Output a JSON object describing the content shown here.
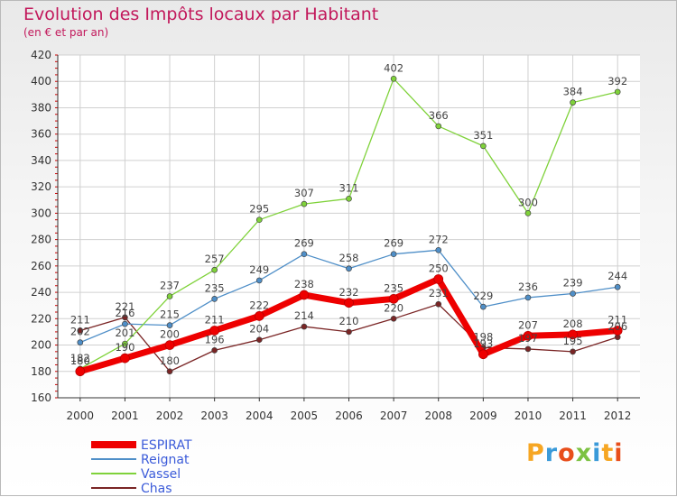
{
  "title": "Evolution des Impôts locaux par Habitant",
  "subtitle": "(en € et par an)",
  "logo": {
    "text": "Proxiti",
    "colors": [
      "#f6a623",
      "#3a9ad9",
      "#e84e1b",
      "#7cc242",
      "#3a9ad9",
      "#f6a623",
      "#e84e1b"
    ]
  },
  "chart_data": {
    "type": "line",
    "x": [
      2000,
      2001,
      2002,
      2003,
      2004,
      2005,
      2006,
      2007,
      2008,
      2009,
      2010,
      2011,
      2012
    ],
    "ylim": [
      160,
      420
    ],
    "yticks": [
      160,
      180,
      200,
      220,
      240,
      260,
      280,
      300,
      320,
      340,
      360,
      380,
      400,
      420
    ],
    "grid": true,
    "legend_position": "bottom-left",
    "series": [
      {
        "name": "ESPIRAT",
        "color": "#ee0000",
        "values": [
          180,
          190,
          200,
          211,
          222,
          238,
          232,
          235,
          250,
          193,
          207,
          208,
          211
        ],
        "labels": [
          "180",
          "190",
          "200",
          "211",
          "222",
          "238",
          "232",
          "235",
          "250",
          "193",
          "207",
          "208",
          "211"
        ]
      },
      {
        "name": "Reignat",
        "color": "#4f8fc8",
        "values": [
          202,
          216,
          215,
          235,
          249,
          269,
          258,
          269,
          272,
          229,
          236,
          239,
          244
        ],
        "labels": [
          "202",
          "216",
          "215",
          "235",
          "249",
          "269",
          "258",
          "269",
          "272",
          "229",
          "236",
          "239",
          "244"
        ]
      },
      {
        "name": "Vassel",
        "color": "#7fd23a",
        "values": [
          182,
          201,
          237,
          257,
          295,
          307,
          311,
          402,
          366,
          351,
          300,
          384,
          392
        ],
        "labels": [
          "182",
          "201",
          "237",
          "257",
          "295",
          "307",
          "311",
          "402",
          "366",
          "351",
          "300",
          "384",
          "392"
        ]
      },
      {
        "name": "Chas",
        "color": "#7a2525",
        "values": [
          211,
          221,
          180,
          196,
          204,
          214,
          210,
          220,
          231,
          198,
          197,
          195,
          206
        ],
        "labels": [
          "211",
          "221",
          "180",
          "196",
          "204",
          "214",
          "210",
          "220",
          "231",
          "198",
          "197",
          "195",
          "206"
        ]
      }
    ]
  }
}
